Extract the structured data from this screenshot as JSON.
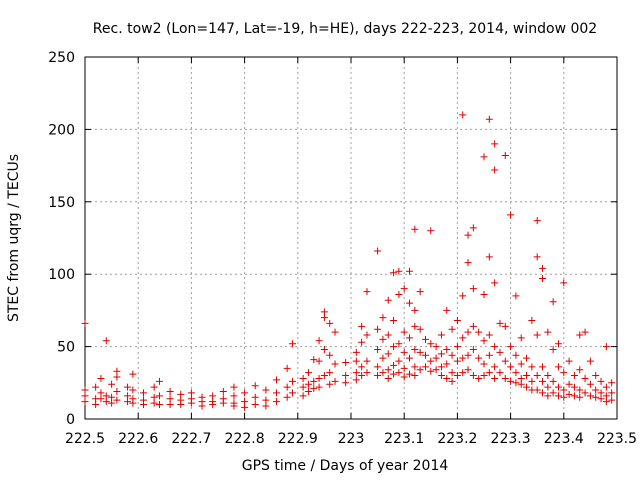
{
  "chart_data": {
    "type": "scatter",
    "title": "Rec. tow2 (Lon=147, Lat=-19, h=HE), days 222-223, 2014, window 002",
    "xlabel": "GPS time / Days of year 2014",
    "ylabel": "STEC from uqrg / TECUs",
    "xlim": [
      222.5,
      223.5
    ],
    "ylim": [
      0,
      250
    ],
    "x_ticks": [
      "222.5",
      "222.6",
      "222.7",
      "222.8",
      "222.9",
      "223",
      "223.1",
      "223.2",
      "223.3",
      "223.4",
      "223.5"
    ],
    "y_ticks": [
      "0",
      "50",
      "100",
      "150",
      "200",
      "250"
    ],
    "grid": true,
    "marker": "+",
    "series": [
      {
        "name": "STEC",
        "color": "#e00000",
        "points": [
          [
            222.5,
            66
          ],
          [
            222.5,
            20
          ],
          [
            222.5,
            16
          ],
          [
            222.5,
            12
          ],
          [
            222.52,
            22
          ],
          [
            222.52,
            14
          ],
          [
            222.52,
            10
          ],
          [
            222.53,
            28
          ],
          [
            222.53,
            18
          ],
          [
            222.53,
            14
          ],
          [
            222.54,
            54
          ],
          [
            222.54,
            16
          ],
          [
            222.54,
            12
          ],
          [
            222.55,
            24
          ],
          [
            222.55,
            15
          ],
          [
            222.55,
            11
          ],
          [
            222.56,
            33
          ],
          [
            222.56,
            29
          ],
          [
            222.56,
            19
          ],
          [
            222.56,
            13
          ],
          [
            222.58,
            22
          ],
          [
            222.58,
            16
          ],
          [
            222.58,
            12
          ],
          [
            222.59,
            31
          ],
          [
            222.59,
            20
          ],
          [
            222.59,
            14
          ],
          [
            222.59,
            11
          ],
          [
            222.61,
            18
          ],
          [
            222.61,
            13
          ],
          [
            222.61,
            10
          ],
          [
            222.63,
            22
          ],
          [
            222.63,
            15
          ],
          [
            222.63,
            11
          ],
          [
            222.64,
            26
          ],
          [
            222.64,
            16
          ],
          [
            222.64,
            10
          ],
          [
            222.66,
            19
          ],
          [
            222.66,
            14
          ],
          [
            222.66,
            10
          ],
          [
            222.68,
            17
          ],
          [
            222.68,
            13
          ],
          [
            222.68,
            10
          ],
          [
            222.7,
            18
          ],
          [
            222.7,
            14
          ],
          [
            222.7,
            11
          ],
          [
            222.72,
            15
          ],
          [
            222.72,
            12
          ],
          [
            222.72,
            9
          ],
          [
            222.74,
            16
          ],
          [
            222.74,
            12
          ],
          [
            222.74,
            10
          ],
          [
            222.76,
            19
          ],
          [
            222.76,
            14
          ],
          [
            222.76,
            11
          ],
          [
            222.78,
            22
          ],
          [
            222.78,
            16
          ],
          [
            222.78,
            11
          ],
          [
            222.78,
            9
          ],
          [
            222.8,
            18
          ],
          [
            222.8,
            12
          ],
          [
            222.8,
            8
          ],
          [
            222.82,
            23
          ],
          [
            222.82,
            15
          ],
          [
            222.82,
            10
          ],
          [
            222.84,
            20
          ],
          [
            222.84,
            13
          ],
          [
            222.84,
            9
          ],
          [
            222.86,
            27
          ],
          [
            222.86,
            18
          ],
          [
            222.86,
            12
          ],
          [
            222.88,
            35
          ],
          [
            222.88,
            22
          ],
          [
            222.88,
            15
          ],
          [
            222.89,
            52
          ],
          [
            222.89,
            26
          ],
          [
            222.89,
            18
          ],
          [
            222.91,
            28
          ],
          [
            222.91,
            22
          ],
          [
            222.91,
            16
          ],
          [
            222.92,
            32
          ],
          [
            222.92,
            24
          ],
          [
            222.92,
            19
          ],
          [
            222.93,
            41
          ],
          [
            222.93,
            26
          ],
          [
            222.93,
            21
          ],
          [
            222.94,
            54
          ],
          [
            222.94,
            40
          ],
          [
            222.94,
            28
          ],
          [
            222.94,
            22
          ],
          [
            222.95,
            74
          ],
          [
            222.95,
            70
          ],
          [
            222.95,
            48
          ],
          [
            222.95,
            30
          ],
          [
            222.96,
            66
          ],
          [
            222.96,
            44
          ],
          [
            222.96,
            32
          ],
          [
            222.96,
            24
          ],
          [
            222.97,
            60
          ],
          [
            222.97,
            38
          ],
          [
            222.97,
            26
          ],
          [
            222.99,
            39
          ],
          [
            222.99,
            30
          ],
          [
            222.99,
            25
          ],
          [
            223.01,
            46
          ],
          [
            223.01,
            40
          ],
          [
            223.01,
            32
          ],
          [
            223.01,
            27
          ],
          [
            223.02,
            64
          ],
          [
            223.02,
            53
          ],
          [
            223.02,
            36
          ],
          [
            223.02,
            30
          ],
          [
            223.03,
            88
          ],
          [
            223.03,
            58
          ],
          [
            223.03,
            40
          ],
          [
            223.03,
            32
          ],
          [
            223.05,
            116
          ],
          [
            223.05,
            62
          ],
          [
            223.05,
            48
          ],
          [
            223.05,
            36
          ],
          [
            223.05,
            30
          ],
          [
            223.06,
            70
          ],
          [
            223.06,
            55
          ],
          [
            223.06,
            42
          ],
          [
            223.06,
            32
          ],
          [
            223.07,
            82
          ],
          [
            223.07,
            58
          ],
          [
            223.07,
            45
          ],
          [
            223.07,
            34
          ],
          [
            223.07,
            28
          ],
          [
            223.08,
            101
          ],
          [
            223.08,
            68
          ],
          [
            223.08,
            50
          ],
          [
            223.08,
            37
          ],
          [
            223.08,
            31
          ],
          [
            223.09,
            102
          ],
          [
            223.09,
            86
          ],
          [
            223.09,
            52
          ],
          [
            223.09,
            40
          ],
          [
            223.09,
            32
          ],
          [
            223.1,
            90
          ],
          [
            223.1,
            60
          ],
          [
            223.1,
            46
          ],
          [
            223.1,
            35
          ],
          [
            223.1,
            29
          ],
          [
            223.11,
            102
          ],
          [
            223.11,
            80
          ],
          [
            223.11,
            56
          ],
          [
            223.11,
            42
          ],
          [
            223.11,
            31
          ],
          [
            223.12,
            131
          ],
          [
            223.12,
            75
          ],
          [
            223.12,
            64
          ],
          [
            223.12,
            48
          ],
          [
            223.12,
            36
          ],
          [
            223.12,
            30
          ],
          [
            223.13,
            88
          ],
          [
            223.13,
            62
          ],
          [
            223.13,
            46
          ],
          [
            223.13,
            34
          ],
          [
            223.14,
            55
          ],
          [
            223.14,
            44
          ],
          [
            223.14,
            36
          ],
          [
            223.15,
            130
          ],
          [
            223.15,
            52
          ],
          [
            223.15,
            40
          ],
          [
            223.15,
            33
          ],
          [
            223.16,
            50
          ],
          [
            223.16,
            42
          ],
          [
            223.16,
            34
          ],
          [
            223.17,
            58
          ],
          [
            223.17,
            45
          ],
          [
            223.17,
            36
          ],
          [
            223.17,
            30
          ],
          [
            223.18,
            75
          ],
          [
            223.18,
            48
          ],
          [
            223.18,
            38
          ],
          [
            223.18,
            28
          ],
          [
            223.19,
            62
          ],
          [
            223.19,
            44
          ],
          [
            223.19,
            32
          ],
          [
            223.19,
            26
          ],
          [
            223.2,
            68
          ],
          [
            223.2,
            50
          ],
          [
            223.2,
            40
          ],
          [
            223.2,
            30
          ],
          [
            223.21,
            210
          ],
          [
            223.21,
            85
          ],
          [
            223.21,
            56
          ],
          [
            223.21,
            42
          ],
          [
            223.21,
            32
          ],
          [
            223.22,
            127
          ],
          [
            223.22,
            108
          ],
          [
            223.22,
            60
          ],
          [
            223.22,
            44
          ],
          [
            223.22,
            34
          ],
          [
            223.23,
            132
          ],
          [
            223.23,
            90
          ],
          [
            223.23,
            64
          ],
          [
            223.23,
            48
          ],
          [
            223.23,
            30
          ],
          [
            223.24,
            60
          ],
          [
            223.24,
            42
          ],
          [
            223.24,
            28
          ],
          [
            223.25,
            181
          ],
          [
            223.25,
            86
          ],
          [
            223.25,
            54
          ],
          [
            223.25,
            38
          ],
          [
            223.25,
            30
          ],
          [
            223.26,
            207
          ],
          [
            223.26,
            112
          ],
          [
            223.26,
            58
          ],
          [
            223.26,
            44
          ],
          [
            223.26,
            32
          ],
          [
            223.27,
            190
          ],
          [
            223.27,
            172
          ],
          [
            223.27,
            94
          ],
          [
            223.27,
            50
          ],
          [
            223.27,
            36
          ],
          [
            223.27,
            28
          ],
          [
            223.28,
            66
          ],
          [
            223.28,
            46
          ],
          [
            223.28,
            32
          ],
          [
            223.29,
            182
          ],
          [
            223.29,
            64
          ],
          [
            223.29,
            40
          ],
          [
            223.29,
            28
          ],
          [
            223.3,
            141
          ],
          [
            223.3,
            50
          ],
          [
            223.3,
            36
          ],
          [
            223.3,
            26
          ],
          [
            223.31,
            85
          ],
          [
            223.31,
            44
          ],
          [
            223.31,
            32
          ],
          [
            223.31,
            25
          ],
          [
            223.32,
            56
          ],
          [
            223.32,
            38
          ],
          [
            223.32,
            28
          ],
          [
            223.32,
            24
          ],
          [
            223.33,
            42
          ],
          [
            223.33,
            30
          ],
          [
            223.33,
            22
          ],
          [
            223.34,
            68
          ],
          [
            223.34,
            36
          ],
          [
            223.34,
            26
          ],
          [
            223.34,
            20
          ],
          [
            223.35,
            137
          ],
          [
            223.35,
            112
          ],
          [
            223.35,
            58
          ],
          [
            223.35,
            30
          ],
          [
            223.35,
            20
          ],
          [
            223.36,
            104
          ],
          [
            223.36,
            97
          ],
          [
            223.36,
            36
          ],
          [
            223.36,
            26
          ],
          [
            223.36,
            18
          ],
          [
            223.37,
            60
          ],
          [
            223.37,
            30
          ],
          [
            223.37,
            22
          ],
          [
            223.37,
            16
          ],
          [
            223.38,
            81
          ],
          [
            223.38,
            48
          ],
          [
            223.38,
            26
          ],
          [
            223.38,
            18
          ],
          [
            223.39,
            52
          ],
          [
            223.39,
            36
          ],
          [
            223.39,
            22
          ],
          [
            223.39,
            16
          ],
          [
            223.4,
            94
          ],
          [
            223.4,
            32
          ],
          [
            223.4,
            20
          ],
          [
            223.4,
            15
          ],
          [
            223.41,
            40
          ],
          [
            223.41,
            24
          ],
          [
            223.41,
            17
          ],
          [
            223.42,
            30
          ],
          [
            223.42,
            22
          ],
          [
            223.42,
            16
          ],
          [
            223.43,
            58
          ],
          [
            223.43,
            34
          ],
          [
            223.43,
            20
          ],
          [
            223.43,
            15
          ],
          [
            223.44,
            60
          ],
          [
            223.44,
            28
          ],
          [
            223.44,
            18
          ],
          [
            223.45,
            40
          ],
          [
            223.45,
            24
          ],
          [
            223.45,
            16
          ],
          [
            223.46,
            30
          ],
          [
            223.46,
            20
          ],
          [
            223.46,
            15
          ],
          [
            223.47,
            26
          ],
          [
            223.47,
            18
          ],
          [
            223.47,
            14
          ],
          [
            223.48,
            50
          ],
          [
            223.48,
            22
          ],
          [
            223.48,
            16
          ],
          [
            223.48,
            12
          ],
          [
            223.49,
            25
          ],
          [
            223.49,
            18
          ],
          [
            223.49,
            13
          ]
        ]
      }
    ]
  }
}
